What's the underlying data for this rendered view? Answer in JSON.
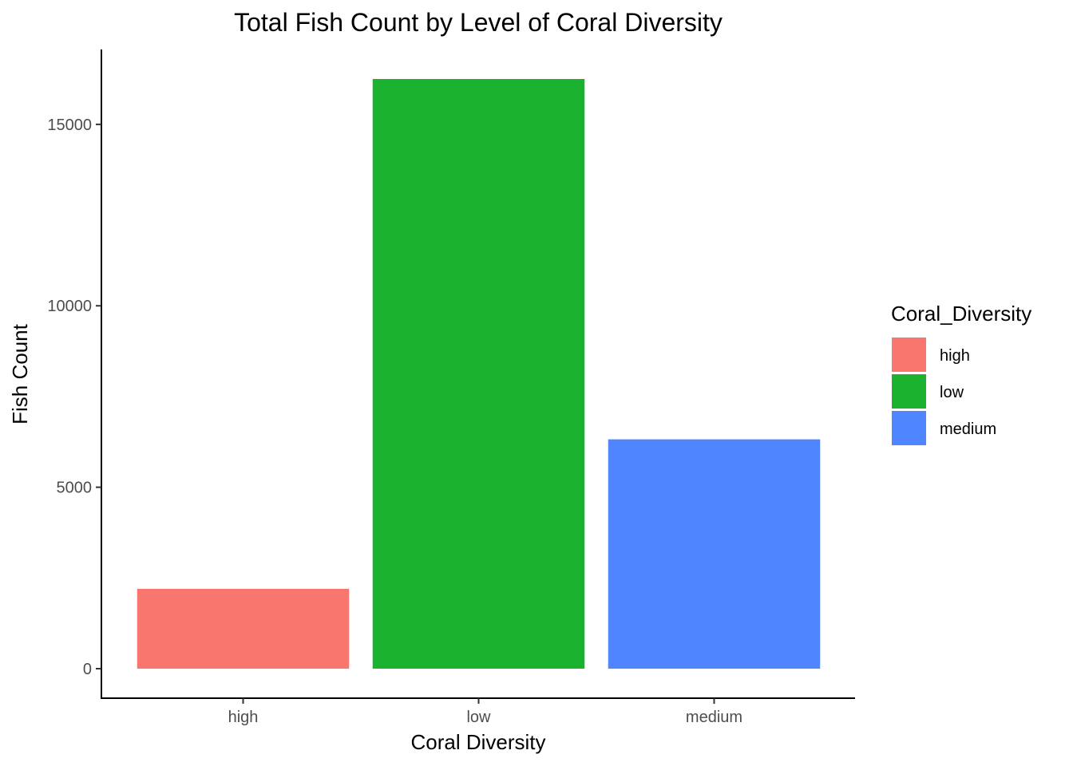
{
  "chart_data": {
    "type": "bar",
    "title": "Total Fish Count by Level of Coral Diversity",
    "xlabel": "Coral Diversity",
    "ylabel": "Fish Count",
    "categories": [
      "high",
      "low",
      "medium"
    ],
    "values": [
      2200,
      16250,
      6320
    ],
    "colors": [
      "#F8766D",
      "#1AB22E",
      "#4F86FF"
    ],
    "ylim": [
      0,
      16250
    ],
    "yticks": [
      0,
      5000,
      10000,
      15000
    ],
    "ytick_labels": [
      "0",
      "5000",
      "10000",
      "15000"
    ],
    "grid": false,
    "legend": {
      "title": "Coral_Diversity",
      "placement": "right",
      "entries": [
        "high",
        "low",
        "medium"
      ]
    }
  }
}
